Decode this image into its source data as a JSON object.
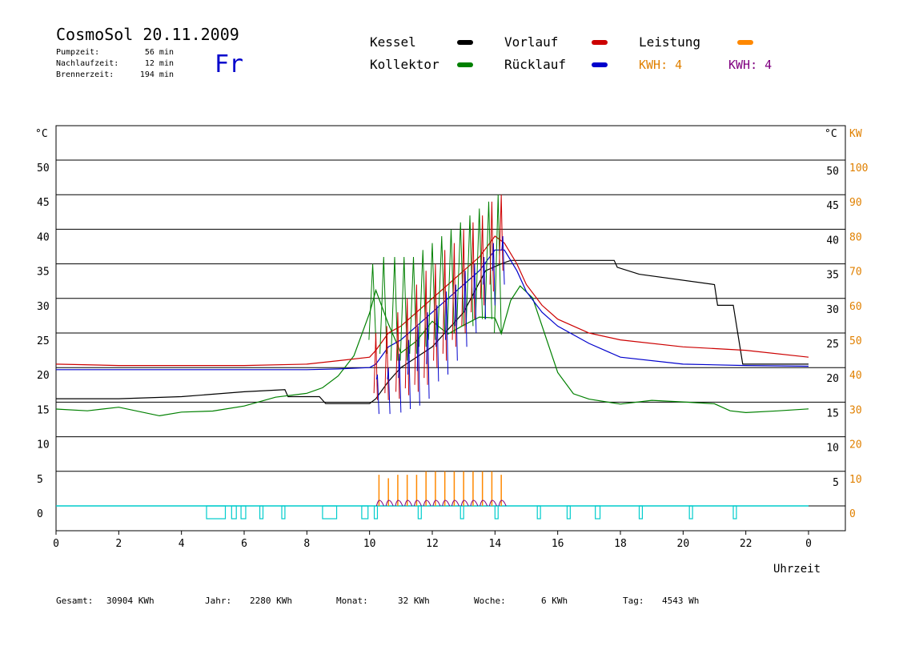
{
  "header": {
    "title": "CosmoSol 20.11.2009",
    "day": "Fr",
    "info": [
      {
        "label": "Pumpzeit:",
        "value": "56 min"
      },
      {
        "label": "Nachlaufzeit:",
        "value": "12 min"
      },
      {
        "label": "Brennerzeit:",
        "value": "194 min"
      }
    ]
  },
  "legend": {
    "kessel": "Kessel",
    "kollektor": "Kollektor",
    "vorlauf": "Vorlauf",
    "ruecklauf": "Rücklauf",
    "leistung": "Leistung",
    "kwh_orange": "KWH: 4",
    "kwh_purple": "KWH: 4"
  },
  "footer": [
    {
      "label": "Gesamt:",
      "value": "30904 KWh"
    },
    {
      "label": "Jahr:",
      "value": "2280 KWh"
    },
    {
      "label": "Monat:",
      "value": "32 KWh"
    },
    {
      "label": "Woche:",
      "value": "6 KWh"
    },
    {
      "label": "Tag:",
      "value": "4543 Wh"
    }
  ],
  "colors": {
    "kessel": "#000000",
    "kollektor": "#008000",
    "vorlauf": "#cc0000",
    "ruecklauf": "#0000cc",
    "leistung": "#ff8800",
    "kwh_purple": "#800080",
    "pump": "#00cccc",
    "right_axis": "#e08000",
    "day": "#0000cc"
  },
  "chart_data": {
    "type": "line",
    "xlabel": "Uhrzeit",
    "ylabel_left": "°C",
    "ylabel_right_1": "°C",
    "ylabel_right_2": "KW",
    "xlim": [
      0,
      24
    ],
    "ylim": [
      -4,
      55
    ],
    "x_ticks": [
      "0",
      "2",
      "4",
      "6",
      "8",
      "10",
      "12",
      "14",
      "16",
      "18",
      "20",
      "22",
      "0"
    ],
    "y_ticks": [
      0,
      5,
      10,
      15,
      20,
      25,
      30,
      35,
      40,
      45,
      50
    ],
    "y_ticks_right_kw": [
      0,
      10,
      20,
      30,
      40,
      50,
      60,
      70,
      80,
      90,
      100
    ],
    "grid": "horizontal",
    "series": [
      {
        "name": "Kessel",
        "x": [
          0,
          2,
          4,
          6,
          7.3,
          7.4,
          8.4,
          8.6,
          10.0,
          10.2,
          10.6,
          11.0,
          12,
          13,
          13.7,
          14.2,
          14.5,
          16,
          17.8,
          17.9,
          18.6,
          21.0,
          21.1,
          21.6,
          21.9,
          24
        ],
        "y": [
          15.5,
          15.5,
          15.8,
          16.5,
          16.8,
          15.8,
          15.8,
          14.8,
          14.8,
          15.5,
          18,
          20,
          23,
          28,
          34,
          35,
          35.5,
          35.5,
          35.5,
          34.5,
          33.5,
          32,
          29,
          29,
          20.5,
          20.5
        ]
      },
      {
        "name": "Kollektor",
        "x": [
          0,
          1,
          2,
          3.3,
          4,
          5,
          6,
          7,
          8,
          8.5,
          9,
          9.5,
          10,
          10.2,
          10.6,
          11,
          11.5,
          12,
          12.5,
          13,
          13.5,
          14,
          14.2,
          14.5,
          14.8,
          15.2,
          16,
          16.5,
          17,
          18,
          19,
          20,
          21,
          21.5,
          22,
          23,
          24
        ],
        "y": [
          14,
          13.5,
          14,
          13,
          13.8,
          14,
          14.5,
          15.5,
          16,
          17,
          19,
          22,
          28,
          31,
          26,
          22,
          24,
          27,
          25,
          26,
          27,
          27,
          25,
          30,
          32,
          30,
          19,
          16,
          15.5,
          15,
          15.5,
          15,
          14.5,
          13.5,
          13.5,
          14,
          14.3
        ]
      },
      {
        "name": "Vorlauf",
        "x": [
          0,
          2,
          4,
          6,
          8,
          9,
          10,
          10.2,
          10.6,
          11,
          11.5,
          12,
          12.5,
          13,
          13.5,
          14,
          14.3,
          14.7,
          15,
          15.5,
          16,
          17,
          18,
          20,
          22,
          24
        ],
        "y": [
          20.5,
          20.3,
          20.3,
          20.3,
          20.5,
          21,
          21.5,
          22.5,
          25,
          26,
          28,
          30,
          32,
          34,
          36,
          39,
          38,
          35,
          32,
          29,
          27,
          25,
          24,
          23,
          22.5,
          21.5
        ]
      },
      {
        "name": "Rücklauf",
        "x": [
          0,
          2,
          4,
          6,
          8,
          9,
          10,
          10.2,
          10.6,
          11,
          11.5,
          12,
          12.5,
          13,
          13.5,
          14,
          14.3,
          14.7,
          15,
          15.5,
          16,
          17,
          18,
          20,
          22,
          24
        ],
        "y": [
          19.7,
          19.7,
          19.7,
          19.7,
          19.7,
          19.8,
          20,
          20.5,
          23,
          24,
          26,
          28,
          30,
          32,
          34,
          37,
          37,
          34,
          31,
          28,
          26,
          23.5,
          21.5,
          20.5,
          20.3,
          20.2
        ]
      }
    ],
    "leistung_spikes": {
      "x": [
        10.3,
        10.6,
        10.9,
        11.2,
        11.5,
        11.8,
        12.1,
        12.4,
        12.7,
        13.0,
        13.3,
        13.6,
        13.9,
        14.2
      ],
      "kw": [
        9,
        8,
        9,
        9,
        9,
        10,
        10,
        10,
        10,
        10,
        10,
        10,
        10,
        9
      ]
    },
    "kollektor_spikes": {
      "x": [
        10.1,
        10.45,
        10.8,
        11.1,
        11.4,
        11.7,
        12.0,
        12.3,
        12.6,
        12.9,
        13.2,
        13.5,
        13.8,
        14.1
      ],
      "peak": [
        35,
        36,
        36,
        36,
        36,
        37,
        38,
        39,
        40,
        41,
        42,
        43,
        44,
        45
      ],
      "trough": [
        24,
        22,
        21,
        21,
        22,
        23,
        24,
        25,
        25,
        26,
        26,
        27,
        27,
        25
      ]
    },
    "vorlauf_spikes": {
      "x": [
        10.2,
        10.55,
        10.9,
        11.2,
        11.5,
        11.8,
        12.1,
        12.4,
        12.7,
        13.0,
        13.3,
        13.6,
        13.9,
        14.2
      ],
      "peak": [
        25,
        26,
        28,
        30,
        32,
        34,
        35,
        37,
        38,
        40,
        41,
        42,
        44,
        45
      ]
    },
    "pump_pulses": [
      [
        4.8,
        5.4
      ],
      [
        5.6,
        5.75
      ],
      [
        5.9,
        6.05
      ],
      [
        6.5,
        6.6
      ],
      [
        7.2,
        7.3
      ],
      [
        8.5,
        8.95
      ],
      [
        9.75,
        9.95
      ],
      [
        10.15,
        10.25
      ],
      [
        11.55,
        11.65
      ],
      [
        12.9,
        13.0
      ],
      [
        14.0,
        14.1
      ],
      [
        15.35,
        15.45
      ],
      [
        16.3,
        16.4
      ],
      [
        17.2,
        17.35
      ],
      [
        18.6,
        18.7
      ],
      [
        20.2,
        20.3
      ],
      [
        21.6,
        21.7
      ]
    ],
    "annotation_days": "Fr"
  }
}
